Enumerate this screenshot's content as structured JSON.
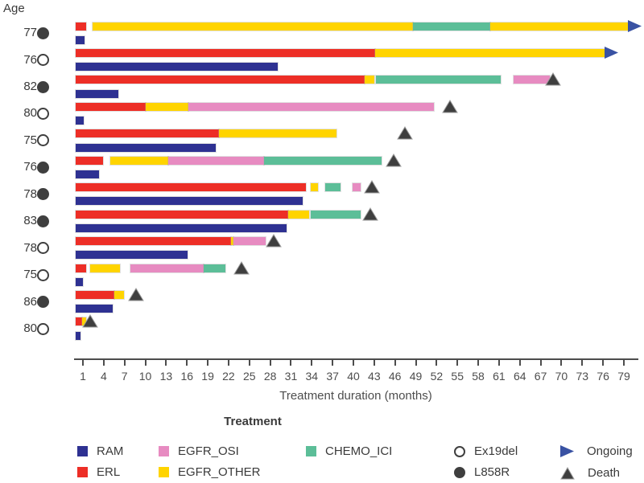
{
  "legend": {
    "title": "Treatment",
    "treatments": [
      {
        "label": "RAM",
        "color": "#2E3192"
      },
      {
        "label": "ERL",
        "color": "#ED2E26"
      },
      {
        "label": "EGFR_OSI",
        "color": "#E78BC1"
      },
      {
        "label": "EGFR_OTHER",
        "color": "#FFD400"
      },
      {
        "label": "CHEMO_ICI",
        "color": "#5CBE98"
      }
    ],
    "mutations": [
      {
        "label": "Ex19del",
        "marker": "open-circle"
      },
      {
        "label": "L858R",
        "marker": "filled-circle"
      }
    ],
    "outcomes": [
      {
        "label": "Ongoing",
        "marker": "blue-right-arrow"
      },
      {
        "label": "Death",
        "marker": "dark-triangle"
      }
    ]
  },
  "colors": {
    "RAM": "#2E3192",
    "ERL": "#ED2E26",
    "EGFR_OSI": "#E78BC1",
    "EGFR_OTHER": "#FFD400",
    "CHEMO_ICI": "#5CBE98",
    "death_marker": "#3F3F3F",
    "ongoing_marker": "#3952A3",
    "marker_outline": "#9a9a9a",
    "axis": "#4d4d4d",
    "text": "#3a3a3a"
  },
  "chart_data": {
    "type": "bar",
    "subtype": "swimmer-plot",
    "y_axis": {
      "header": "Age"
    },
    "x_axis": {
      "label": "Treatment duration (months)",
      "min": 0,
      "max": 80,
      "ticks": [
        1,
        4,
        7,
        10,
        13,
        16,
        19,
        22,
        25,
        28,
        31,
        34,
        37,
        40,
        43,
        46,
        49,
        52,
        55,
        58,
        61,
        64,
        67,
        70,
        73,
        76,
        79
      ]
    },
    "patients": [
      {
        "age": 77,
        "mutation": "L858R",
        "outcome": "Ongoing",
        "outcome_month": 79.7,
        "bars": [
          {
            "segments": [
              {
                "treatment": "ERL",
                "start": 0,
                "end": 1.5
              },
              {
                "treatment": "EGFR_OTHER",
                "start": 2.4,
                "end": 48.6
              },
              {
                "treatment": "CHEMO_ICI",
                "start": 48.6,
                "end": 59.7
              },
              {
                "treatment": "EGFR_OTHER",
                "start": 59.7,
                "end": 79.7
              }
            ]
          },
          {
            "segments": [
              {
                "treatment": "RAM",
                "start": 0,
                "end": 1.2
              }
            ]
          }
        ]
      },
      {
        "age": 76,
        "mutation": "Ex19del",
        "outcome": "Ongoing",
        "outcome_month": 76.3,
        "bars": [
          {
            "segments": [
              {
                "treatment": "ERL",
                "start": 0,
                "end": 43.1
              },
              {
                "treatment": "EGFR_OTHER",
                "start": 43.1,
                "end": 76.3
              }
            ]
          },
          {
            "segments": [
              {
                "treatment": "RAM",
                "start": 0,
                "end": 29.1
              }
            ]
          }
        ]
      },
      {
        "age": 82,
        "mutation": "L858R",
        "outcome": "Death",
        "outcome_month": 68.8,
        "bars": [
          {
            "segments": [
              {
                "treatment": "ERL",
                "start": 0,
                "end": 41.6
              },
              {
                "treatment": "EGFR_OTHER",
                "start": 41.6,
                "end": 43.0
              },
              {
                "treatment": "CHEMO_ICI",
                "start": 43.2,
                "end": 61.3
              },
              {
                "treatment": "EGFR_OSI",
                "start": 63.1,
                "end": 68.3
              }
            ]
          },
          {
            "segments": [
              {
                "treatment": "RAM",
                "start": 0,
                "end": 6.1
              }
            ]
          }
        ]
      },
      {
        "age": 80,
        "mutation": "Ex19del",
        "outcome": "Death",
        "outcome_month": 53.9,
        "bars": [
          {
            "segments": [
              {
                "treatment": "ERL",
                "start": 0,
                "end": 10.0
              },
              {
                "treatment": "EGFR_OTHER",
                "start": 10.0,
                "end": 16.2
              },
              {
                "treatment": "EGFR_OSI",
                "start": 16.2,
                "end": 51.6
              }
            ]
          },
          {
            "segments": [
              {
                "treatment": "RAM",
                "start": 0,
                "end": 1.1
              }
            ]
          }
        ]
      },
      {
        "age": 75,
        "mutation": "Ex19del",
        "outcome": "Death",
        "outcome_month": 47.4,
        "bars": [
          {
            "segments": [
              {
                "treatment": "ERL",
                "start": 0,
                "end": 20.6
              },
              {
                "treatment": "EGFR_OTHER",
                "start": 20.6,
                "end": 37.6
              }
            ]
          },
          {
            "segments": [
              {
                "treatment": "RAM",
                "start": 0,
                "end": 20.1
              }
            ]
          }
        ]
      },
      {
        "age": 76,
        "mutation": "L858R",
        "outcome": "Death",
        "outcome_month": 45.8,
        "bars": [
          {
            "segments": [
              {
                "treatment": "ERL",
                "start": 0,
                "end": 3.9
              },
              {
                "treatment": "EGFR_OTHER",
                "start": 4.9,
                "end": 13.3
              },
              {
                "treatment": "EGFR_OSI",
                "start": 13.3,
                "end": 27.1
              },
              {
                "treatment": "CHEMO_ICI",
                "start": 27.1,
                "end": 44.1
              }
            ]
          },
          {
            "segments": [
              {
                "treatment": "RAM",
                "start": 0,
                "end": 3.3
              }
            ]
          }
        ]
      },
      {
        "age": 78,
        "mutation": "L858R",
        "outcome": "Death",
        "outcome_month": 42.7,
        "bars": [
          {
            "segments": [
              {
                "treatment": "ERL",
                "start": 0,
                "end": 33.1
              },
              {
                "treatment": "EGFR_OTHER",
                "start": 33.8,
                "end": 34.9
              },
              {
                "treatment": "CHEMO_ICI",
                "start": 35.9,
                "end": 38.1
              },
              {
                "treatment": "EGFR_OSI",
                "start": 39.9,
                "end": 41.0
              }
            ]
          },
          {
            "segments": [
              {
                "treatment": "RAM",
                "start": 0,
                "end": 32.7
              }
            ]
          }
        ]
      },
      {
        "age": 83,
        "mutation": "L858R",
        "outcome": "Death",
        "outcome_month": 42.4,
        "bars": [
          {
            "segments": [
              {
                "treatment": "ERL",
                "start": 0,
                "end": 30.6
              },
              {
                "treatment": "EGFR_OTHER",
                "start": 30.6,
                "end": 33.6
              },
              {
                "treatment": "CHEMO_ICI",
                "start": 33.8,
                "end": 41.0
              }
            ]
          },
          {
            "segments": [
              {
                "treatment": "RAM",
                "start": 0,
                "end": 30.4
              }
            ]
          }
        ]
      },
      {
        "age": 78,
        "mutation": "Ex19del",
        "outcome": "Death",
        "outcome_month": 28.5,
        "bars": [
          {
            "segments": [
              {
                "treatment": "ERL",
                "start": 0,
                "end": 22.4
              },
              {
                "treatment": "EGFR_OTHER",
                "start": 22.4,
                "end": 22.7
              },
              {
                "treatment": "EGFR_OSI",
                "start": 22.7,
                "end": 27.3
              }
            ]
          },
          {
            "segments": [
              {
                "treatment": "RAM",
                "start": 0,
                "end": 16.1
              }
            ]
          }
        ]
      },
      {
        "age": 75,
        "mutation": "Ex19del",
        "outcome": "Death",
        "outcome_month": 23.9,
        "bars": [
          {
            "segments": [
              {
                "treatment": "ERL",
                "start": 0,
                "end": 1.5
              },
              {
                "treatment": "EGFR_OTHER",
                "start": 2.0,
                "end": 6.3
              },
              {
                "treatment": "EGFR_OSI",
                "start": 7.8,
                "end": 18.4
              },
              {
                "treatment": "CHEMO_ICI",
                "start": 18.4,
                "end": 21.5
              }
            ]
          },
          {
            "segments": [
              {
                "treatment": "RAM",
                "start": 0,
                "end": 1.0
              }
            ]
          }
        ]
      },
      {
        "age": 86,
        "mutation": "L858R",
        "outcome": "Death",
        "outcome_month": 8.7,
        "bars": [
          {
            "segments": [
              {
                "treatment": "ERL",
                "start": 0,
                "end": 5.5
              },
              {
                "treatment": "EGFR_OTHER",
                "start": 5.5,
                "end": 6.9
              }
            ]
          },
          {
            "segments": [
              {
                "treatment": "RAM",
                "start": 0,
                "end": 5.3
              }
            ]
          }
        ]
      },
      {
        "age": 80,
        "mutation": "Ex19del",
        "outcome": "Death",
        "outcome_month": 2.0,
        "bars": [
          {
            "segments": [
              {
                "treatment": "ERL",
                "start": 0,
                "end": 0.9
              },
              {
                "treatment": "EGFR_OTHER",
                "start": 0.9,
                "end": 1.5
              }
            ]
          },
          {
            "segments": [
              {
                "treatment": "RAM",
                "start": 0,
                "end": 0.7
              }
            ]
          }
        ]
      }
    ]
  }
}
